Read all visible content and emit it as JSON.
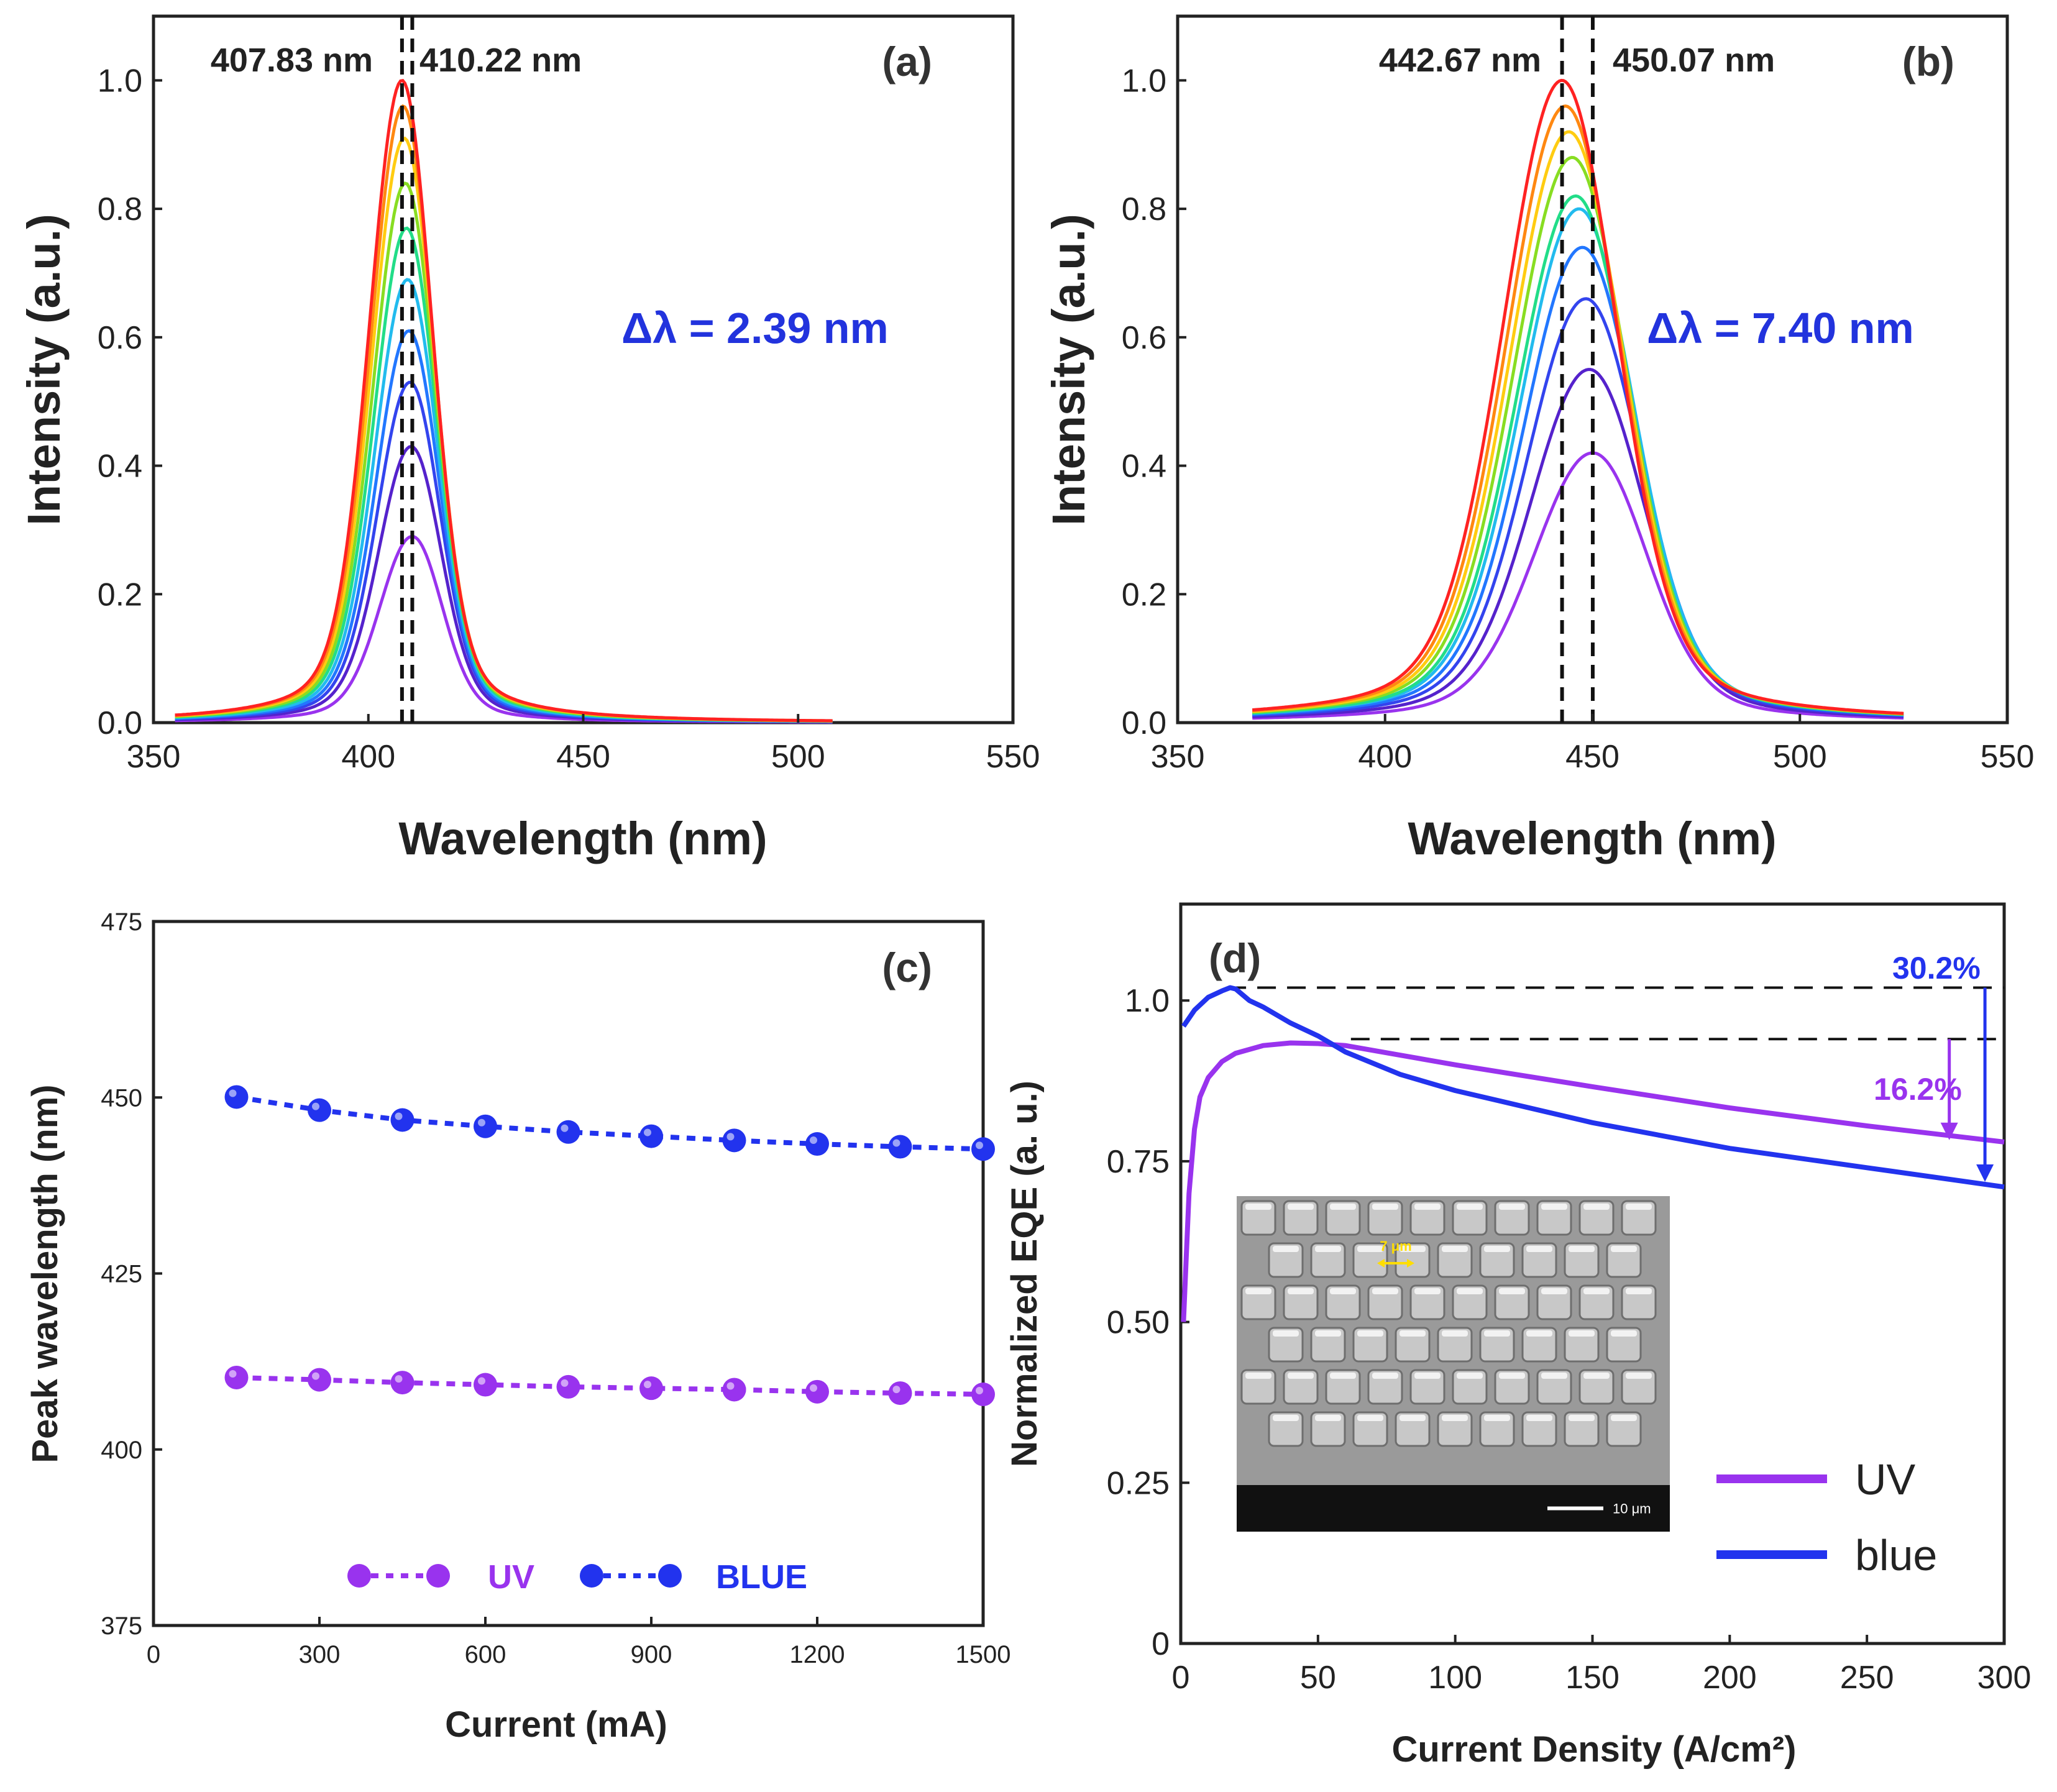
{
  "chart_data": [
    {
      "id": "a",
      "type": "line",
      "panel_label": "(a)",
      "xlabel": "Wavelength (nm)",
      "ylabel": "Intensity (a.u.)",
      "xlim": [
        350,
        550
      ],
      "ylim": [
        0,
        1.1
      ],
      "xticks": [
        "350",
        "400",
        "450",
        "500",
        "550"
      ],
      "yticks": [
        "0.0",
        "0.2",
        "0.4",
        "0.6",
        "0.8",
        "1.0"
      ],
      "annotations": {
        "peak_left": "407.83 nm",
        "peak_right": "410.22 nm",
        "delta": "Δλ = 2.39 nm"
      },
      "dashed_lines_x": [
        407.83,
        410.22
      ],
      "series_colors": [
        "#9933ee",
        "#5522cc",
        "#3344ee",
        "#2277ff",
        "#22bbee",
        "#22dd88",
        "#88dd22",
        "#ffcc11",
        "#ff8811",
        "#ff2222"
      ],
      "series_peaks": [
        0.29,
        0.43,
        0.53,
        0.61,
        0.69,
        0.77,
        0.84,
        0.91,
        0.96,
        1.0
      ],
      "series_center_start": 410.22,
      "series_center_end": 407.83,
      "series_fwhm": 16,
      "x_range": [
        355,
        508
      ]
    },
    {
      "id": "b",
      "type": "line",
      "panel_label": "(b)",
      "xlabel": "Wavelength (nm)",
      "ylabel": "Intensity (a.u.)",
      "xlim": [
        350,
        550
      ],
      "ylim": [
        0,
        1.1
      ],
      "xticks": [
        "350",
        "400",
        "450",
        "500",
        "550"
      ],
      "yticks": [
        "0.0",
        "0.2",
        "0.4",
        "0.6",
        "0.8",
        "1.0"
      ],
      "annotations": {
        "peak_left": "442.67 nm",
        "peak_right": "450.07 nm",
        "delta": "Δλ = 7.40 nm"
      },
      "dashed_lines_x": [
        442.67,
        450.07
      ],
      "series_colors": [
        "#9933ee",
        "#5522cc",
        "#3344ee",
        "#2277ff",
        "#22bbee",
        "#22dd88",
        "#88dd22",
        "#ffcc11",
        "#ff8811",
        "#ff2222"
      ],
      "series_peaks": [
        0.42,
        0.55,
        0.66,
        0.74,
        0.8,
        0.82,
        0.88,
        0.92,
        0.96,
        1.0
      ],
      "series_center_start": 450.07,
      "series_center_end": 442.67,
      "series_fwhm": 30,
      "x_range": [
        368,
        525
      ]
    },
    {
      "id": "c",
      "type": "scatter",
      "panel_label": "(c)",
      "xlabel": "Current (mA)",
      "ylabel": "Peak wavelength (nm)",
      "xlim": [
        0,
        1500
      ],
      "ylim": [
        375,
        475
      ],
      "xticks": [
        "0",
        "300",
        "600",
        "900",
        "1200",
        "1500"
      ],
      "yticks": [
        "375",
        "400",
        "425",
        "450",
        "475"
      ],
      "x": [
        150,
        300,
        450,
        600,
        750,
        900,
        1050,
        1200,
        1350,
        1500
      ],
      "series": [
        {
          "name": "UV",
          "color": "#9933ee",
          "values": [
            410.22,
            409.9,
            409.5,
            409.2,
            408.9,
            408.7,
            408.5,
            408.2,
            408.0,
            407.83
          ]
        },
        {
          "name": "BLUE",
          "color": "#2233ee",
          "values": [
            450.07,
            448.2,
            446.8,
            445.9,
            445.1,
            444.5,
            443.9,
            443.4,
            443.0,
            442.67
          ]
        }
      ],
      "legend": {
        "uv_label": "UV",
        "blue_label": "BLUE"
      }
    },
    {
      "id": "d",
      "type": "line",
      "panel_label": "(d)",
      "xlabel": "Current Density (A/cm²)",
      "ylabel": "Normalized EQE (a. u.)",
      "xlim": [
        0,
        300
      ],
      "ylim": [
        0,
        1.15
      ],
      "xticks": [
        "0",
        "50",
        "100",
        "150",
        "200",
        "250",
        "300"
      ],
      "yticks": [
        "0",
        "0.25",
        "0.50",
        "0.75",
        "1.0"
      ],
      "series": [
        {
          "name": "UV",
          "color": "#9933ee",
          "x": [
            1,
            2,
            3,
            5,
            7,
            10,
            15,
            20,
            30,
            40,
            50,
            60,
            80,
            100,
            150,
            200,
            250,
            300
          ],
          "y": [
            0.5,
            0.6,
            0.7,
            0.8,
            0.85,
            0.88,
            0.905,
            0.918,
            0.93,
            0.934,
            0.933,
            0.93,
            0.915,
            0.9,
            0.866,
            0.833,
            0.805,
            0.78
          ]
        },
        {
          "name": "blue",
          "color": "#2233ee",
          "x": [
            1,
            5,
            10,
            15,
            18,
            20,
            25,
            30,
            40,
            50,
            60,
            80,
            100,
            150,
            200,
            250,
            300
          ],
          "y": [
            0.96,
            0.985,
            1.005,
            1.015,
            1.02,
            1.018,
            1.0,
            0.99,
            0.965,
            0.945,
            0.92,
            0.885,
            0.86,
            0.81,
            0.77,
            0.74,
            0.71
          ]
        }
      ],
      "reference_lines": [
        1.02,
        0.94
      ],
      "annotations": {
        "blue_drop": "30.2%",
        "uv_drop": "16.2%"
      },
      "legend": {
        "uv_label": "UV",
        "blue_label": "blue"
      },
      "inset": {
        "measure_label": "7 μm",
        "scale_label": "10 μm"
      }
    }
  ]
}
